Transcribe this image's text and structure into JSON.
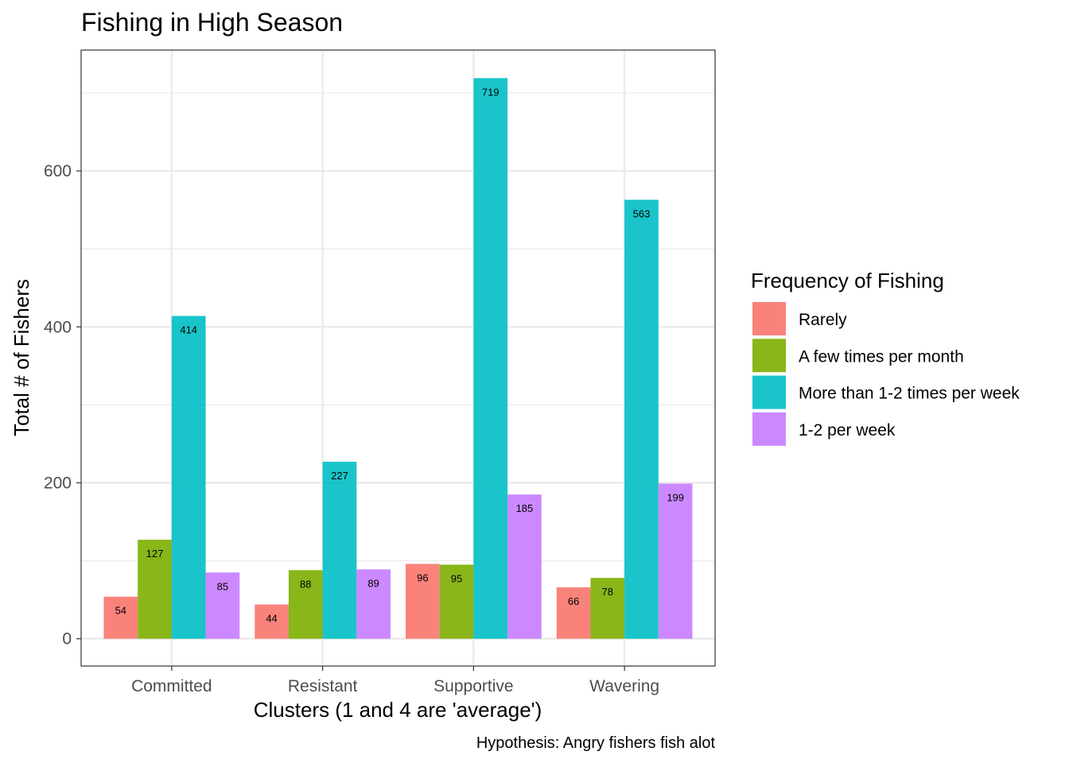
{
  "chart_data": {
    "type": "bar",
    "title": "Fishing in High Season",
    "xlabel": "Clusters (1 and 4 are 'average')",
    "ylabel": "Total # of Fishers",
    "caption": "Hypothesis: Angry fishers fish alot",
    "categories": [
      "Committed",
      "Resistant",
      "Supportive",
      "Wavering"
    ],
    "ylim": [
      -35,
      755
    ],
    "yticks": [
      0,
      200,
      400,
      600
    ],
    "grid": true,
    "legend": {
      "title": "Frequency of Fishing",
      "position": "right"
    },
    "series": [
      {
        "name": "Rarely",
        "color": "#F8766D",
        "values": [
          54,
          44,
          96,
          66
        ]
      },
      {
        "name": "A few times per month",
        "color": "#7CAE00",
        "values": [
          127,
          88,
          95,
          78
        ]
      },
      {
        "name": "More than 1-2 times per week",
        "color": "#00BFC4",
        "values": [
          414,
          227,
          719,
          563
        ]
      },
      {
        "name": "1-2 per week",
        "color": "#C77CFF",
        "values": [
          85,
          89,
          185,
          199
        ]
      }
    ]
  }
}
